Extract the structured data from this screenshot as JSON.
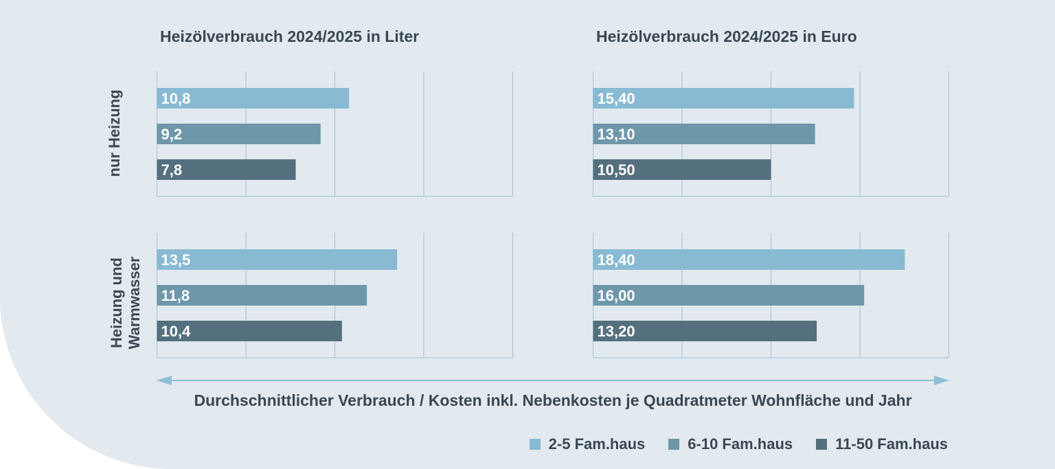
{
  "colors": {
    "background": "#e2e9ef",
    "grid": "#a9c7d6",
    "text": "#3a4752",
    "series": [
      "#88bad4",
      "#6e97aa",
      "#54707f"
    ]
  },
  "titles": {
    "left": "Heizölverbrauch 2024/2025 in Liter",
    "right": "Heizölverbrauch 2024/2025 in Euro"
  },
  "row_labels": {
    "top": "nur Heizung",
    "bottom_line1": "Heizung und",
    "bottom_line2": "Warmwasser"
  },
  "caption": "Durchschnittlicher Verbrauch / Kosten inkl. Nebenkosten je Quadratmeter Wohnfläche und Jahr",
  "legend": [
    {
      "label": "2-5 Fam.haus"
    },
    {
      "label": "6-10 Fam.haus"
    },
    {
      "label": "11-50 Fam.haus"
    }
  ],
  "chart_data": [
    {
      "type": "bar",
      "orientation": "horizontal",
      "title": "Heizölverbrauch 2024/2025 in Liter",
      "group": "nur Heizung",
      "categories": [
        "2-5 Fam.haus",
        "6-10 Fam.haus",
        "11-50 Fam.haus"
      ],
      "values": [
        10.8,
        9.2,
        7.8
      ],
      "labels": [
        "10,8",
        "9,2",
        "7,8"
      ],
      "xlim": [
        0,
        20
      ],
      "grid": true
    },
    {
      "type": "bar",
      "orientation": "horizontal",
      "title": "Heizölverbrauch 2024/2025 in Euro",
      "group": "nur Heizung",
      "categories": [
        "2-5 Fam.haus",
        "6-10 Fam.haus",
        "11-50 Fam.haus"
      ],
      "values": [
        15.4,
        13.1,
        10.5
      ],
      "labels": [
        "15,40",
        "13,10",
        "10,50"
      ],
      "xlim": [
        0,
        21
      ],
      "grid": true
    },
    {
      "type": "bar",
      "orientation": "horizontal",
      "title": "Heizölverbrauch 2024/2025 in Liter",
      "group": "Heizung und Warmwasser",
      "categories": [
        "2-5 Fam.haus",
        "6-10 Fam.haus",
        "11-50 Fam.haus"
      ],
      "values": [
        13.5,
        11.8,
        10.4
      ],
      "labels": [
        "13,5",
        "11,8",
        "10,4"
      ],
      "xlim": [
        0,
        20
      ],
      "grid": true
    },
    {
      "type": "bar",
      "orientation": "horizontal",
      "title": "Heizölverbrauch 2024/2025 in Euro",
      "group": "Heizung und Warmwasser",
      "categories": [
        "2-5 Fam.haus",
        "6-10 Fam.haus",
        "11-50 Fam.haus"
      ],
      "values": [
        18.4,
        16.0,
        13.2
      ],
      "labels": [
        "18,40",
        "16,00",
        "13,20"
      ],
      "xlim": [
        0,
        21
      ],
      "grid": true
    }
  ]
}
